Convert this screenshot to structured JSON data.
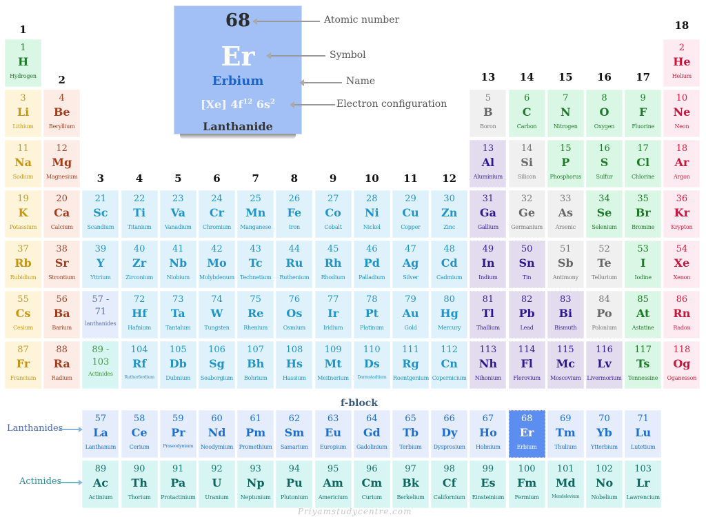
{
  "legend": {
    "atomic_number": "68",
    "symbol": "Er",
    "name": "Erbium",
    "config_prefix": "[Xe] 4f",
    "config_sup1": "12",
    "config_mid": " 6s",
    "config_sup2": "2",
    "category": "Lanthanide",
    "callouts": {
      "atomic_number": "Atomic number",
      "symbol": "Symbol",
      "name": "Name",
      "config": "Electron configuration"
    }
  },
  "groups": [
    "1",
    "2",
    "3",
    "4",
    "5",
    "6",
    "7",
    "8",
    "9",
    "10",
    "11",
    "12",
    "13",
    "14",
    "15",
    "16",
    "17",
    "18"
  ],
  "fblock_title": "f-block",
  "row_labels": {
    "lanthanides": "Lanthanides",
    "actinides": "Actinides"
  },
  "watermark": "Priyamstudycentre.com",
  "colors": {
    "nonmetal": "#d9f7e4",
    "alkali": "#fdf4da",
    "alkaline": "#fdece6",
    "transition": "#dff2fc",
    "post_transition": "#e3dcee",
    "metalloid": "#f0f0f0",
    "noble": "#fdebf1",
    "lanthanide": "#e5edfd",
    "actinide": "#d7f5f3",
    "highlight": "#5b8ef0"
  },
  "elements": [
    {
      "n": "1",
      "s": "H",
      "name": "Hydrogen",
      "c": "nonmetal",
      "col": 1,
      "row": 1
    },
    {
      "n": "2",
      "s": "He",
      "name": "Helium",
      "c": "noble",
      "col": 18,
      "row": 1
    },
    {
      "n": "3",
      "s": "Li",
      "name": "Lithium",
      "c": "alkali",
      "col": 1,
      "row": 2
    },
    {
      "n": "4",
      "s": "Be",
      "name": "Beryllium",
      "c": "alkaline",
      "col": 2,
      "row": 2
    },
    {
      "n": "5",
      "s": "B",
      "name": "Boron",
      "c": "metalloid",
      "col": 13,
      "row": 2
    },
    {
      "n": "6",
      "s": "C",
      "name": "Carbon",
      "c": "nonmetal",
      "col": 14,
      "row": 2
    },
    {
      "n": "7",
      "s": "N",
      "name": "Nitrogen",
      "c": "nonmetal",
      "col": 15,
      "row": 2
    },
    {
      "n": "8",
      "s": "O",
      "name": "Oxygen",
      "c": "nonmetal",
      "col": 16,
      "row": 2
    },
    {
      "n": "9",
      "s": "F",
      "name": "Fluorine",
      "c": "nonmetal",
      "col": 17,
      "row": 2
    },
    {
      "n": "10",
      "s": "Ne",
      "name": "Neon",
      "c": "noble",
      "col": 18,
      "row": 2
    },
    {
      "n": "11",
      "s": "Na",
      "name": "Sodium",
      "c": "alkali",
      "col": 1,
      "row": 3
    },
    {
      "n": "12",
      "s": "Mg",
      "name": "Magnesium",
      "c": "alkaline",
      "col": 2,
      "row": 3
    },
    {
      "n": "13",
      "s": "Al",
      "name": "Aluminium",
      "c": "post",
      "col": 13,
      "row": 3
    },
    {
      "n": "14",
      "s": "Si",
      "name": "Silicon",
      "c": "metalloid",
      "col": 14,
      "row": 3
    },
    {
      "n": "15",
      "s": "P",
      "name": "Phosphorus",
      "c": "nonmetal",
      "col": 15,
      "row": 3
    },
    {
      "n": "16",
      "s": "S",
      "name": "Sulfur",
      "c": "nonmetal",
      "col": 16,
      "row": 3
    },
    {
      "n": "17",
      "s": "Cl",
      "name": "Chlorine",
      "c": "nonmetal",
      "col": 17,
      "row": 3
    },
    {
      "n": "18",
      "s": "Ar",
      "name": "Argon",
      "c": "noble",
      "col": 18,
      "row": 3
    },
    {
      "n": "19",
      "s": "K",
      "name": "Potassium",
      "c": "alkali",
      "col": 1,
      "row": 4
    },
    {
      "n": "20",
      "s": "Ca",
      "name": "Calcium",
      "c": "alkaline",
      "col": 2,
      "row": 4
    },
    {
      "n": "21",
      "s": "Sc",
      "name": "Scandium",
      "c": "transition",
      "col": 3,
      "row": 4
    },
    {
      "n": "22",
      "s": "Ti",
      "name": "Titanium",
      "c": "transition",
      "col": 4,
      "row": 4
    },
    {
      "n": "23",
      "s": "Va",
      "name": "Vanadium",
      "c": "transition",
      "col": 5,
      "row": 4
    },
    {
      "n": "24",
      "s": "Cr",
      "name": "Chromium",
      "c": "transition",
      "col": 6,
      "row": 4
    },
    {
      "n": "25",
      "s": "Mn",
      "name": "Manganese",
      "c": "transition",
      "col": 7,
      "row": 4
    },
    {
      "n": "26",
      "s": "Fe",
      "name": "Iron",
      "c": "transition",
      "col": 8,
      "row": 4
    },
    {
      "n": "27",
      "s": "Co",
      "name": "Cobalt",
      "c": "transition",
      "col": 9,
      "row": 4
    },
    {
      "n": "28",
      "s": "Ni",
      "name": "Nickel",
      "c": "transition",
      "col": 10,
      "row": 4
    },
    {
      "n": "29",
      "s": "Cu",
      "name": "Copper",
      "c": "transition",
      "col": 11,
      "row": 4
    },
    {
      "n": "30",
      "s": "Zn",
      "name": "Zinc",
      "c": "transition",
      "col": 12,
      "row": 4
    },
    {
      "n": "31",
      "s": "Ga",
      "name": "Gallium",
      "c": "post",
      "col": 13,
      "row": 4
    },
    {
      "n": "32",
      "s": "Ge",
      "name": "Germanium",
      "c": "metalloid",
      "col": 14,
      "row": 4
    },
    {
      "n": "33",
      "s": "As",
      "name": "Arsenic",
      "c": "metalloid",
      "col": 15,
      "row": 4
    },
    {
      "n": "34",
      "s": "Se",
      "name": "Selenium",
      "c": "nonmetal",
      "col": 16,
      "row": 4
    },
    {
      "n": "35",
      "s": "Br",
      "name": "Bromine",
      "c": "nonmetal",
      "col": 17,
      "row": 4
    },
    {
      "n": "36",
      "s": "Kr",
      "name": "Krypton",
      "c": "noble",
      "col": 18,
      "row": 4
    },
    {
      "n": "37",
      "s": "Rb",
      "name": "Rubidium",
      "c": "alkali",
      "col": 1,
      "row": 5
    },
    {
      "n": "38",
      "s": "Sr",
      "name": "Strontium",
      "c": "alkaline",
      "col": 2,
      "row": 5
    },
    {
      "n": "39",
      "s": "Y",
      "name": "Yttrium",
      "c": "transition",
      "col": 3,
      "row": 5
    },
    {
      "n": "40",
      "s": "Zr",
      "name": "Zirconium",
      "c": "transition",
      "col": 4,
      "row": 5
    },
    {
      "n": "41",
      "s": "Nb",
      "name": "Niobium",
      "c": "transition",
      "col": 5,
      "row": 5
    },
    {
      "n": "42",
      "s": "Mo",
      "name": "Molybdenum",
      "c": "transition",
      "col": 6,
      "row": 5
    },
    {
      "n": "43",
      "s": "Tc",
      "name": "Technetium",
      "c": "transition",
      "col": 7,
      "row": 5
    },
    {
      "n": "44",
      "s": "Ru",
      "name": "Ruthenium",
      "c": "transition",
      "col": 8,
      "row": 5
    },
    {
      "n": "45",
      "s": "Rh",
      "name": "Rhodium",
      "c": "transition",
      "col": 9,
      "row": 5
    },
    {
      "n": "46",
      "s": "Pd",
      "name": "Palladium",
      "c": "transition",
      "col": 10,
      "row": 5
    },
    {
      "n": "47",
      "s": "Ag",
      "name": "Silver",
      "c": "transition",
      "col": 11,
      "row": 5
    },
    {
      "n": "48",
      "s": "Cd",
      "name": "Cadmium",
      "c": "transition",
      "col": 12,
      "row": 5
    },
    {
      "n": "49",
      "s": "In",
      "name": "Indium",
      "c": "post",
      "col": 13,
      "row": 5
    },
    {
      "n": "50",
      "s": "Sn",
      "name": "Tin",
      "c": "post",
      "col": 14,
      "row": 5
    },
    {
      "n": "51",
      "s": "Sb",
      "name": "Antimony",
      "c": "metalloid",
      "col": 15,
      "row": 5
    },
    {
      "n": "52",
      "s": "Te",
      "name": "Tellurium",
      "c": "metalloid",
      "col": 16,
      "row": 5
    },
    {
      "n": "53",
      "s": "I",
      "name": "Iodine",
      "c": "nonmetal",
      "col": 17,
      "row": 5
    },
    {
      "n": "54",
      "s": "Xe",
      "name": "Xenon",
      "c": "noble",
      "col": 18,
      "row": 5
    },
    {
      "n": "55",
      "s": "Cs",
      "name": "Cesium",
      "c": "alkali",
      "col": 1,
      "row": 6
    },
    {
      "n": "56",
      "s": "Ba",
      "name": "Barium",
      "c": "alkaline",
      "col": 2,
      "row": 6
    },
    {
      "n": "57 -",
      "n2": "71",
      "s": "",
      "name": "lanthanides",
      "c": "lanthph",
      "col": 3,
      "row": 6,
      "range": true
    },
    {
      "n": "72",
      "s": "Hf",
      "name": "Hafnium",
      "c": "transition",
      "col": 4,
      "row": 6
    },
    {
      "n": "73",
      "s": "Ta",
      "name": "Tantalum",
      "c": "transition",
      "col": 5,
      "row": 6
    },
    {
      "n": "74",
      "s": "W",
      "name": "Tungsten",
      "c": "transition",
      "col": 6,
      "row": 6
    },
    {
      "n": "75",
      "s": "Re",
      "name": "Rhenium",
      "c": "transition",
      "col": 7,
      "row": 6
    },
    {
      "n": "76",
      "s": "Os",
      "name": "Osmium",
      "c": "transition",
      "col": 8,
      "row": 6
    },
    {
      "n": "77",
      "s": "Ir",
      "name": "Iridium",
      "c": "transition",
      "col": 9,
      "row": 6
    },
    {
      "n": "78",
      "s": "Pt",
      "name": "Platinum",
      "c": "transition",
      "col": 10,
      "row": 6
    },
    {
      "n": "79",
      "s": "Au",
      "name": "Gold",
      "c": "transition",
      "col": 11,
      "row": 6
    },
    {
      "n": "80",
      "s": "Hg",
      "name": "Mercury",
      "c": "transition",
      "col": 12,
      "row": 6
    },
    {
      "n": "81",
      "s": "Tl",
      "name": "Thallium",
      "c": "post",
      "col": 13,
      "row": 6
    },
    {
      "n": "82",
      "s": "Pb",
      "name": "Lead",
      "c": "post",
      "col": 14,
      "row": 6
    },
    {
      "n": "83",
      "s": "Bi",
      "name": "Bismuth",
      "c": "post",
      "col": 15,
      "row": 6
    },
    {
      "n": "84",
      "s": "Po",
      "name": "Polonium",
      "c": "metalloid",
      "col": 16,
      "row": 6
    },
    {
      "n": "85",
      "s": "At",
      "name": "Astatine",
      "c": "nonmetal",
      "col": 17,
      "row": 6
    },
    {
      "n": "86",
      "s": "Rn",
      "name": "Radon",
      "c": "noble",
      "col": 18,
      "row": 6
    },
    {
      "n": "87",
      "s": "Fr",
      "name": "Francium",
      "c": "alkali",
      "col": 1,
      "row": 7
    },
    {
      "n": "88",
      "s": "Ra",
      "name": "Radium",
      "c": "alkaline",
      "col": 2,
      "row": 7
    },
    {
      "n": "89 -",
      "n2": "103",
      "s": "",
      "name": "Actinides",
      "c": "actinph",
      "col": 3,
      "row": 7,
      "range": true
    },
    {
      "n": "104",
      "s": "Rf",
      "name": "Rutherfordium",
      "c": "transition",
      "col": 4,
      "row": 7,
      "small": true
    },
    {
      "n": "105",
      "s": "Db",
      "name": "Dubnium",
      "c": "transition",
      "col": 5,
      "row": 7
    },
    {
      "n": "106",
      "s": "Sg",
      "name": "Seaborgium",
      "c": "transition",
      "col": 6,
      "row": 7
    },
    {
      "n": "107",
      "s": "Bh",
      "name": "Bohrium",
      "c": "transition",
      "col": 7,
      "row": 7
    },
    {
      "n": "108",
      "s": "Hs",
      "name": "Hassium",
      "c": "transition",
      "col": 8,
      "row": 7
    },
    {
      "n": "109",
      "s": "Mt",
      "name": "Meitnerium",
      "c": "transition",
      "col": 9,
      "row": 7
    },
    {
      "n": "110",
      "s": "Ds",
      "name": "Darmstadtium",
      "c": "transition",
      "col": 10,
      "row": 7,
      "small": true
    },
    {
      "n": "111",
      "s": "Rg",
      "name": "Roentgenium",
      "c": "transition",
      "col": 11,
      "row": 7
    },
    {
      "n": "112",
      "s": "Cn",
      "name": "Copernicium",
      "c": "transition",
      "col": 12,
      "row": 7
    },
    {
      "n": "113",
      "s": "Nh",
      "name": "Nihonium",
      "c": "post",
      "col": 13,
      "row": 7
    },
    {
      "n": "114",
      "s": "Fl",
      "name": "Flerovium",
      "c": "post",
      "col": 14,
      "row": 7
    },
    {
      "n": "115",
      "s": "Mc",
      "name": "Moscovium",
      "c": "post",
      "col": 15,
      "row": 7
    },
    {
      "n": "116",
      "s": "Lv",
      "name": "Livermorium",
      "c": "post",
      "col": 16,
      "row": 7
    },
    {
      "n": "117",
      "s": "Ts",
      "name": "Tennessine",
      "c": "nonmetal",
      "col": 17,
      "row": 7
    },
    {
      "n": "118",
      "s": "Og",
      "name": "Oganesson",
      "c": "noble",
      "col": 18,
      "row": 7
    },
    {
      "n": "57",
      "s": "La",
      "name": "Lanthanum",
      "c": "lanth",
      "col": 3,
      "row": 9
    },
    {
      "n": "58",
      "s": "Ce",
      "name": "Cerium",
      "c": "lanth",
      "col": 4,
      "row": 9
    },
    {
      "n": "59",
      "s": "Pr",
      "name": "Praseodymium",
      "c": "lanth",
      "col": 5,
      "row": 9,
      "small": true
    },
    {
      "n": "60",
      "s": "Nd",
      "name": "Neodymium",
      "c": "lanth",
      "col": 6,
      "row": 9
    },
    {
      "n": "61",
      "s": "Pm",
      "name": "Promethium",
      "c": "lanth",
      "col": 7,
      "row": 9
    },
    {
      "n": "62",
      "s": "Sm",
      "name": "Samarium",
      "c": "lanth",
      "col": 8,
      "row": 9
    },
    {
      "n": "63",
      "s": "Eu",
      "name": "Europium",
      "c": "lanth",
      "col": 9,
      "row": 9
    },
    {
      "n": "64",
      "s": "Gd",
      "name": "Gadolinium",
      "c": "lanth",
      "col": 10,
      "row": 9
    },
    {
      "n": "65",
      "s": "Tb",
      "name": "Terbium",
      "c": "lanth",
      "col": 11,
      "row": 9
    },
    {
      "n": "66",
      "s": "Dy",
      "name": "Dysprosium",
      "c": "lanth",
      "col": 12,
      "row": 9
    },
    {
      "n": "67",
      "s": "Ho",
      "name": "Holmium",
      "c": "lanth",
      "col": 13,
      "row": 9
    },
    {
      "n": "68",
      "s": "Er",
      "name": "Erbium",
      "c": "highlight",
      "col": 14,
      "row": 9
    },
    {
      "n": "69",
      "s": "Tm",
      "name": "Thulium",
      "c": "lanth",
      "col": 15,
      "row": 9
    },
    {
      "n": "70",
      "s": "Yb",
      "name": "Ytterbium",
      "c": "lanth",
      "col": 16,
      "row": 9
    },
    {
      "n": "71",
      "s": "Lu",
      "name": "Lutetium",
      "c": "lanth",
      "col": 17,
      "row": 9
    },
    {
      "n": "89",
      "s": "Ac",
      "name": "Actinium",
      "c": "actin",
      "col": 3,
      "row": 10
    },
    {
      "n": "90",
      "s": "Th",
      "name": "Thorium",
      "c": "actin",
      "col": 4,
      "row": 10
    },
    {
      "n": "91",
      "s": "Pa",
      "name": "Protactinium",
      "c": "actin",
      "col": 5,
      "row": 10
    },
    {
      "n": "92",
      "s": "U",
      "name": "Uranium",
      "c": "actin",
      "col": 6,
      "row": 10
    },
    {
      "n": "93",
      "s": "Np",
      "name": "Neptunium",
      "c": "actin",
      "col": 7,
      "row": 10
    },
    {
      "n": "94",
      "s": "Pu",
      "name": "Plutonium",
      "c": "actin",
      "col": 8,
      "row": 10
    },
    {
      "n": "95",
      "s": "Am",
      "name": "Americium",
      "c": "actin",
      "col": 9,
      "row": 10
    },
    {
      "n": "96",
      "s": "Cm",
      "name": "Curium",
      "c": "actin",
      "col": 10,
      "row": 10
    },
    {
      "n": "97",
      "s": "Bk",
      "name": "Berkelium",
      "c": "actin",
      "col": 11,
      "row": 10
    },
    {
      "n": "98",
      "s": "Cf",
      "name": "Californium",
      "c": "actin",
      "col": 12,
      "row": 10
    },
    {
      "n": "99",
      "s": "Es",
      "name": "Einsteinium",
      "c": "actin",
      "col": 13,
      "row": 10
    },
    {
      "n": "100",
      "s": "Fm",
      "name": "Fermium",
      "c": "actin",
      "col": 14,
      "row": 10
    },
    {
      "n": "101",
      "s": "Md",
      "name": "Mendelevium",
      "c": "actin",
      "col": 15,
      "row": 10,
      "small": true
    },
    {
      "n": "102",
      "s": "No",
      "name": "Nobelium",
      "c": "actin",
      "col": 16,
      "row": 10
    },
    {
      "n": "103",
      "s": "Lr",
      "name": "Lawrencium",
      "c": "actin",
      "col": 17,
      "row": 10
    }
  ]
}
